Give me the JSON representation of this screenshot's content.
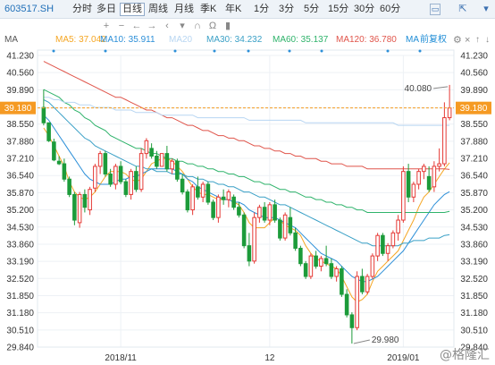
{
  "toolbar": {
    "stock_code": "603517.SH",
    "periods": [
      "分时",
      "多日",
      "日线",
      "周线",
      "月线",
      "季K",
      "年K",
      "1分",
      "3分",
      "5分",
      "15分",
      "30分",
      "60分"
    ],
    "active_period": "日线",
    "icons": [
      "plus-icon",
      "minus-icon",
      "left-arrow-icon",
      "right-arrow-icon",
      "magnet-icon",
      "headphones-icon",
      "window-icon",
      "share-icon"
    ]
  },
  "ma_bar": {
    "label": "MA",
    "items": [
      {
        "text": "MA5: 37.042",
        "color": "#f5a623"
      },
      {
        "text": "MA10: 35.911",
        "color": "#2c8fd8"
      },
      {
        "text": "MA20",
        "color": "#b8d6f2"
      },
      {
        "text": "MA30: 34.232",
        "color": "#3aa0c6"
      },
      {
        "text": "MA60: 35.137",
        "color": "#2fb36b"
      },
      {
        "text": "MA120: 36.780",
        "color": "#e0554b"
      }
    ],
    "adjust": {
      "text": "前复权",
      "color": "#1f8dd6"
    },
    "ma_short_label": "MA",
    "icons": [
      "settings-gear-icon",
      "close-icon",
      "up-arrow-icon",
      "down-arrow-icon"
    ]
  },
  "chart_data": {
    "type": "candlestick",
    "y_ticks": [
      "41.230",
      "40.560",
      "39.890",
      "39.180",
      "38.550",
      "37.880",
      "37.210",
      "36.540",
      "35.870",
      "35.200",
      "34.530",
      "33.860",
      "33.190",
      "32.520",
      "31.850",
      "31.180",
      "30.510",
      "29.840"
    ],
    "ylim": [
      29.84,
      41.23
    ],
    "current_price": "39.180",
    "x_ticks": [
      "2018/11",
      "12",
      "2019/01"
    ],
    "annotations": [
      {
        "label": "40.080",
        "value": 40.08,
        "kind": "high"
      },
      {
        "label": "29.980",
        "value": 29.98,
        "kind": "low"
      }
    ],
    "candles": [
      [
        39.2,
        39.9,
        38.5,
        38.6
      ],
      [
        38.6,
        38.6,
        37.85,
        37.9
      ],
      [
        37.85,
        37.98,
        37.1,
        37.15
      ],
      [
        37.1,
        37.3,
        36.95,
        37.0
      ],
      [
        37.0,
        37.2,
        36.3,
        36.4
      ],
      [
        36.4,
        36.5,
        35.7,
        35.8
      ],
      [
        35.8,
        35.9,
        34.6,
        34.8
      ],
      [
        34.7,
        35.9,
        34.5,
        35.8
      ],
      [
        35.8,
        36.0,
        35.1,
        35.3
      ],
      [
        35.2,
        36.1,
        35.0,
        36.0
      ],
      [
        36.05,
        37.0,
        35.9,
        36.9
      ],
      [
        36.9,
        37.5,
        36.6,
        37.4
      ],
      [
        37.4,
        37.5,
        36.5,
        36.6
      ],
      [
        36.6,
        36.8,
        36.1,
        36.2
      ],
      [
        36.2,
        37.0,
        36.0,
        36.9
      ],
      [
        36.9,
        37.1,
        36.2,
        36.3
      ],
      [
        36.3,
        36.4,
        35.7,
        35.8
      ],
      [
        35.8,
        36.8,
        35.6,
        36.7
      ],
      [
        36.7,
        36.9,
        35.9,
        36.0
      ],
      [
        36.0,
        37.6,
        35.9,
        37.4
      ],
      [
        37.4,
        38.0,
        37.2,
        37.9
      ],
      [
        37.6,
        37.8,
        37.2,
        37.3
      ],
      [
        37.3,
        37.5,
        36.8,
        36.9
      ],
      [
        36.9,
        37.4,
        36.9,
        37.4
      ],
      [
        37.4,
        37.7,
        36.7,
        36.8
      ],
      [
        36.8,
        37.2,
        36.6,
        37.1
      ],
      [
        37.1,
        37.2,
        36.3,
        36.4
      ],
      [
        36.4,
        36.6,
        35.8,
        35.9
      ],
      [
        35.9,
        36.0,
        35.1,
        35.2
      ],
      [
        35.2,
        36.2,
        35.0,
        36.1
      ],
      [
        36.1,
        36.5,
        35.6,
        35.7
      ],
      [
        35.7,
        36.3,
        35.5,
        36.2
      ],
      [
        36.2,
        36.3,
        35.4,
        35.5
      ],
      [
        35.5,
        35.6,
        34.8,
        34.9
      ],
      [
        34.9,
        35.8,
        34.7,
        35.7
      ],
      [
        35.7,
        36.0,
        35.4,
        35.6
      ],
      [
        35.6,
        36.0,
        35.3,
        35.9
      ],
      [
        35.7,
        35.8,
        35.2,
        35.3
      ],
      [
        35.3,
        35.5,
        34.9,
        35.0
      ],
      [
        35.0,
        35.1,
        33.7,
        33.8
      ],
      [
        33.8,
        34.3,
        33.0,
        33.2
      ],
      [
        33.2,
        35.1,
        33.1,
        34.9
      ],
      [
        34.9,
        35.4,
        34.7,
        35.3
      ],
      [
        35.3,
        35.5,
        34.7,
        34.8
      ],
      [
        34.8,
        35.5,
        34.6,
        35.4
      ],
      [
        35.4,
        35.6,
        34.7,
        34.8
      ],
      [
        34.8,
        34.9,
        34.0,
        34.1
      ],
      [
        34.1,
        35.1,
        34.0,
        35.0
      ],
      [
        34.9,
        35.3,
        34.2,
        34.3
      ],
      [
        34.3,
        34.5,
        33.6,
        33.7
      ],
      [
        33.7,
        33.8,
        33.0,
        33.1
      ],
      [
        33.1,
        33.2,
        32.5,
        32.6
      ],
      [
        32.6,
        33.5,
        32.5,
        33.4
      ],
      [
        33.4,
        33.6,
        32.9,
        33.0
      ],
      [
        33.0,
        33.4,
        32.8,
        33.3
      ],
      [
        33.3,
        33.8,
        33.0,
        33.1
      ],
      [
        33.1,
        33.3,
        32.5,
        32.6
      ],
      [
        32.6,
        33.0,
        32.4,
        32.9
      ],
      [
        32.9,
        33.0,
        31.8,
        31.9
      ],
      [
        31.9,
        32.1,
        31.0,
        31.1
      ],
      [
        31.1,
        31.2,
        29.98,
        30.6
      ],
      [
        30.6,
        32.8,
        30.5,
        32.6
      ],
      [
        32.6,
        32.9,
        31.9,
        32.0
      ],
      [
        32.0,
        32.7,
        31.9,
        32.6
      ],
      [
        32.6,
        33.5,
        32.5,
        33.4
      ],
      [
        33.4,
        34.3,
        33.2,
        34.2
      ],
      [
        34.2,
        34.3,
        33.4,
        33.5
      ],
      [
        33.5,
        33.9,
        33.2,
        33.8
      ],
      [
        33.8,
        34.4,
        33.7,
        34.3
      ],
      [
        34.3,
        35.0,
        34.0,
        34.8
      ],
      [
        34.8,
        36.9,
        34.7,
        36.7
      ],
      [
        36.7,
        37.0,
        35.5,
        35.7
      ],
      [
        35.7,
        36.3,
        35.5,
        36.2
      ],
      [
        36.2,
        36.8,
        36.0,
        36.7
      ],
      [
        36.7,
        37.0,
        36.4,
        36.9
      ],
      [
        36.5,
        36.9,
        35.9,
        36.0
      ],
      [
        36.1,
        37.1,
        35.9,
        36.9
      ],
      [
        36.9,
        37.6,
        36.7,
        37.0
      ],
      [
        37.0,
        39.4,
        36.9,
        38.8
      ],
      [
        38.8,
        40.08,
        38.7,
        39.18
      ]
    ],
    "ma_lines": [
      {
        "name": "MA5",
        "color": "#f5a623",
        "values": [
          38.4,
          38.1,
          37.7,
          37.3,
          36.9,
          36.3,
          35.9,
          35.7,
          35.6,
          35.7,
          35.9,
          36.2,
          36.5,
          36.7,
          36.7,
          36.7,
          36.6,
          36.4,
          36.3,
          36.4,
          36.7,
          37.0,
          37.1,
          37.2,
          37.2,
          37.1,
          36.9,
          36.7,
          36.4,
          36.1,
          35.9,
          35.8,
          35.8,
          35.7,
          35.6,
          35.6,
          35.6,
          35.5,
          35.4,
          35.1,
          34.7,
          34.5,
          34.5,
          34.5,
          34.7,
          34.9,
          34.8,
          34.6,
          34.5,
          34.4,
          34.2,
          33.8,
          33.5,
          33.3,
          33.2,
          33.1,
          33.0,
          32.9,
          32.6,
          32.2,
          31.8,
          31.6,
          31.7,
          31.9,
          32.4,
          32.8,
          33.0,
          33.2,
          33.4,
          33.6,
          34.0,
          34.4,
          34.8,
          35.3,
          35.7,
          35.9,
          36.2,
          36.5,
          36.8,
          37.04
        ]
      },
      {
        "name": "MA10",
        "color": "#2c8fd8",
        "values": [
          38.9,
          38.7,
          38.4,
          38.1,
          37.8,
          37.5,
          37.2,
          36.9,
          36.6,
          36.4,
          36.3,
          36.2,
          36.2,
          36.2,
          36.3,
          36.4,
          36.4,
          36.5,
          36.5,
          36.6,
          36.7,
          36.8,
          36.8,
          36.8,
          36.8,
          36.8,
          36.7,
          36.6,
          36.4,
          36.3,
          36.1,
          36.0,
          35.9,
          35.8,
          35.7,
          35.6,
          35.6,
          35.5,
          35.5,
          35.4,
          35.2,
          35.1,
          35.0,
          34.9,
          34.9,
          34.9,
          34.8,
          34.7,
          34.6,
          34.5,
          34.3,
          34.1,
          33.9,
          33.7,
          33.5,
          33.4,
          33.3,
          33.2,
          33.0,
          32.8,
          32.6,
          32.5,
          32.4,
          32.4,
          32.5,
          32.6,
          32.8,
          33.0,
          33.2,
          33.4,
          33.6,
          33.9,
          34.2,
          34.5,
          34.8,
          35.1,
          35.4,
          35.6,
          35.8,
          35.91
        ]
      },
      {
        "name": "MA30",
        "color": "#3aa0c6",
        "values": [
          39.5,
          39.4,
          39.2,
          39.0,
          38.8,
          38.6,
          38.4,
          38.2,
          38.0,
          37.9,
          37.7,
          37.6,
          37.5,
          37.4,
          37.3,
          37.2,
          37.1,
          37.0,
          36.9,
          36.9,
          36.8,
          36.8,
          36.7,
          36.7,
          36.7,
          36.6,
          36.6,
          36.6,
          36.5,
          36.5,
          36.4,
          36.4,
          36.3,
          36.3,
          36.2,
          36.2,
          36.1,
          36.1,
          36.0,
          35.9,
          35.9,
          35.8,
          35.7,
          35.7,
          35.6,
          35.5,
          35.4,
          35.4,
          35.3,
          35.2,
          35.1,
          35.0,
          34.9,
          34.8,
          34.7,
          34.6,
          34.5,
          34.4,
          34.3,
          34.2,
          34.1,
          34.0,
          33.9,
          33.9,
          33.8,
          33.8,
          33.8,
          33.8,
          33.8,
          33.8,
          33.9,
          33.9,
          34.0,
          34.0,
          34.0,
          34.1,
          34.1,
          34.1,
          34.2,
          34.23
        ]
      },
      {
        "name": "MA60",
        "color": "#2fb36b",
        "values": [
          39.9,
          39.8,
          39.7,
          39.6,
          39.4,
          39.3,
          39.1,
          39.0,
          38.8,
          38.7,
          38.5,
          38.4,
          38.3,
          38.1,
          38.0,
          37.9,
          37.8,
          37.7,
          37.6,
          37.6,
          37.5,
          37.4,
          37.4,
          37.3,
          37.2,
          37.2,
          37.1,
          37.1,
          37.0,
          37.0,
          36.9,
          36.9,
          36.8,
          36.8,
          36.7,
          36.7,
          36.6,
          36.6,
          36.5,
          36.5,
          36.4,
          36.3,
          36.3,
          36.2,
          36.2,
          36.1,
          36.0,
          36.0,
          35.9,
          35.9,
          35.8,
          35.7,
          35.7,
          35.6,
          35.6,
          35.5,
          35.5,
          35.4,
          35.4,
          35.3,
          35.3,
          35.2,
          35.2,
          35.1,
          35.1,
          35.1,
          35.1,
          35.1,
          35.1,
          35.1,
          35.1,
          35.1,
          35.1,
          35.1,
          35.1,
          35.1,
          35.1,
          35.1,
          35.1,
          35.14
        ]
      },
      {
        "name": "MA120",
        "color": "#e0554b",
        "values": [
          41.0,
          40.9,
          40.8,
          40.7,
          40.6,
          40.5,
          40.4,
          40.3,
          40.2,
          40.1,
          40.0,
          39.9,
          39.8,
          39.7,
          39.6,
          39.6,
          39.5,
          39.4,
          39.3,
          39.2,
          39.1,
          39.1,
          39.0,
          38.9,
          38.8,
          38.8,
          38.7,
          38.6,
          38.5,
          38.5,
          38.4,
          38.3,
          38.3,
          38.2,
          38.1,
          38.1,
          38.0,
          38.0,
          37.9,
          37.9,
          37.8,
          37.7,
          37.7,
          37.6,
          37.6,
          37.5,
          37.5,
          37.4,
          37.4,
          37.3,
          37.3,
          37.2,
          37.2,
          37.2,
          37.1,
          37.1,
          37.0,
          37.0,
          37.0,
          36.9,
          36.9,
          36.9,
          36.9,
          36.8,
          36.8,
          36.8,
          36.8,
          36.8,
          36.8,
          36.8,
          36.8,
          36.8,
          36.8,
          36.8,
          36.8,
          36.8,
          36.8,
          36.8,
          36.8,
          36.78
        ]
      },
      {
        "name": "MA20",
        "color": "#b8d6f2",
        "values": [
          39.6,
          39.6,
          39.5,
          39.5,
          39.4,
          39.4,
          39.4,
          39.3,
          39.3,
          39.3,
          39.2,
          39.2,
          39.2,
          39.2,
          39.1,
          39.1,
          39.1,
          39.1,
          39.0,
          39.0,
          39.0,
          39.0,
          39.0,
          38.9,
          38.9,
          38.9,
          38.9,
          38.9,
          38.9,
          38.9,
          38.8,
          38.8,
          38.8,
          38.8,
          38.8,
          38.8,
          38.8,
          38.8,
          38.8,
          38.8,
          38.7,
          38.7,
          38.7,
          38.7,
          38.7,
          38.7,
          38.7,
          38.7,
          38.7,
          38.7,
          38.7,
          38.6,
          38.6,
          38.6,
          38.6,
          38.6,
          38.6,
          38.6,
          38.6,
          38.6,
          38.6,
          38.6,
          38.6,
          38.6,
          38.6,
          38.6,
          38.6,
          38.6,
          38.6,
          38.5,
          38.5,
          38.5,
          38.5,
          38.5,
          38.5,
          38.5,
          38.5,
          38.5,
          38.5,
          38.5
        ]
      }
    ],
    "up_color": "#e53935",
    "down_color": "#1c9b3a",
    "price_line_color": "#f59a23"
  },
  "watermark": "@格隆汇"
}
